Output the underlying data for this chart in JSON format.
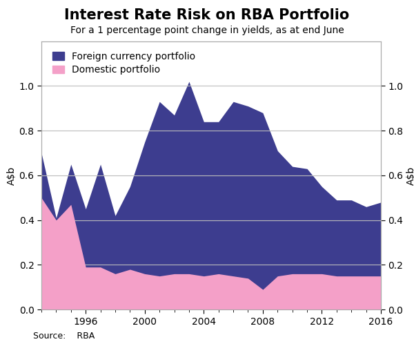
{
  "title": "Interest Rate Risk on RBA Portfolio",
  "subtitle": "For a 1 percentage point change in yields, as at end June",
  "ylabel_left": "A$b",
  "ylabel_right": "A$b",
  "source": "Source:    RBA",
  "years": [
    1993,
    1994,
    1995,
    1996,
    1997,
    1998,
    1999,
    2000,
    2001,
    2002,
    2003,
    2004,
    2005,
    2006,
    2007,
    2008,
    2009,
    2010,
    2011,
    2012,
    2013,
    2014,
    2015,
    2016
  ],
  "foreign_only": [
    0.7,
    0.41,
    0.65,
    0.45,
    0.65,
    0.42,
    0.55,
    0.75,
    0.93,
    0.87,
    1.02,
    0.84,
    0.84,
    0.93,
    0.91,
    0.88,
    0.71,
    0.64,
    0.63,
    0.55,
    0.49,
    0.49,
    0.46,
    0.48
  ],
  "domestic": [
    0.5,
    0.4,
    0.47,
    0.19,
    0.19,
    0.16,
    0.18,
    0.16,
    0.15,
    0.16,
    0.16,
    0.15,
    0.16,
    0.15,
    0.14,
    0.09,
    0.15,
    0.16,
    0.16,
    0.16,
    0.15,
    0.15,
    0.15,
    0.15
  ],
  "foreign_color": "#3d3d8f",
  "domestic_color": "#f4a0c8",
  "ylim": [
    0.0,
    1.2
  ],
  "yticks": [
    0.0,
    0.2,
    0.4,
    0.6,
    0.8,
    1.0
  ],
  "xlim": [
    1993,
    2016
  ],
  "xticks": [
    1996,
    2000,
    2004,
    2008,
    2012,
    2016
  ],
  "background_color": "#ffffff",
  "grid_color": "#bbbbbb",
  "title_fontsize": 15,
  "subtitle_fontsize": 10,
  "label_fontsize": 10,
  "tick_fontsize": 10,
  "source_fontsize": 9,
  "legend_foreign": "Foreign currency portfolio",
  "legend_domestic": "Domestic portfolio"
}
